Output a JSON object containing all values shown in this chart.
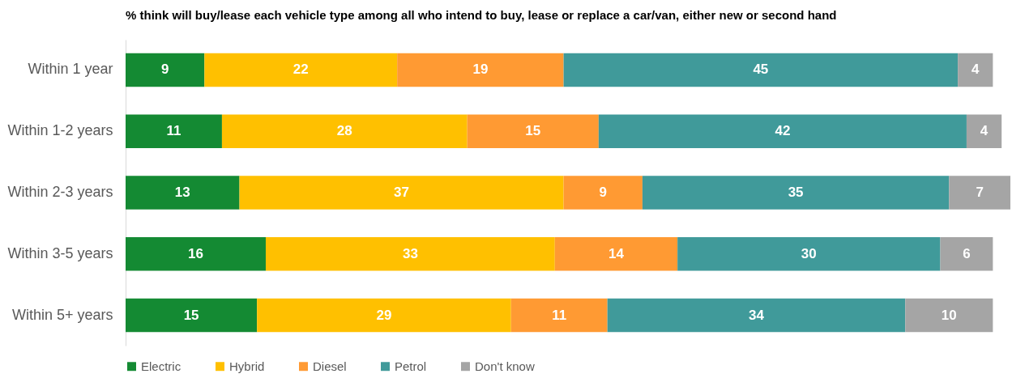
{
  "chart_data": {
    "type": "bar",
    "orientation": "horizontal",
    "stacked": true,
    "data_labels": true,
    "legend": "bottom",
    "grid": false,
    "tick_labels": "y",
    "title": "% think will buy/lease each vehicle type among all who intend to buy, lease or replace a car/van, either new or second hand",
    "categories": [
      "Within 1 year",
      "Within 1-2 years",
      "Within 2-3 years",
      "Within 3-5 years",
      "Within 5+ years"
    ],
    "xlim": [
      0,
      101
    ],
    "series": [
      {
        "name": "Electric",
        "color": "#148a33",
        "values": [
          9,
          11,
          13,
          16,
          15
        ]
      },
      {
        "name": "Hybrid",
        "color": "#ffc000",
        "values": [
          22,
          28,
          37,
          33,
          29
        ]
      },
      {
        "name": "Diesel",
        "color": "#ff9a33",
        "values": [
          19,
          15,
          9,
          14,
          11
        ]
      },
      {
        "name": "Petrol",
        "color": "#409a9a",
        "values": [
          45,
          42,
          35,
          30,
          34
        ]
      },
      {
        "name": "Don't know",
        "color": "#a5a5a5",
        "values": [
          4,
          4,
          7,
          6,
          10
        ]
      }
    ]
  }
}
